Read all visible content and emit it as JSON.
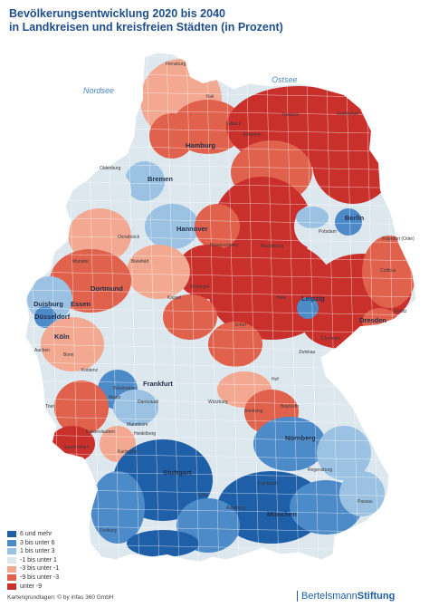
{
  "title": {
    "line1": "Bevölkerungsentwicklung 2020 bis 2040",
    "line2": "in Landkreisen und kreisfreien Städten (in Prozent)"
  },
  "seas": {
    "north": "Nordsee",
    "east": "Ostsee"
  },
  "legend": [
    {
      "label": "6  und mehr",
      "color": "#1f5fa8"
    },
    {
      "label": "3  bis unter   6",
      "color": "#4d8ac8"
    },
    {
      "label": "1  bis unter   3",
      "color": "#9cc2e3"
    },
    {
      "label": "-1  bis unter   1",
      "color": "#dde7ee"
    },
    {
      "label": "-3  bis unter  -1",
      "color": "#f3a892"
    },
    {
      "label": "-9  bis unter  -3",
      "color": "#e0614c"
    },
    {
      "label": "unter   -9",
      "color": "#c9302c"
    }
  ],
  "cities": [
    {
      "name": "Hamburg",
      "kind": "major"
    },
    {
      "name": "Bremen",
      "kind": "major"
    },
    {
      "name": "Hannover",
      "kind": "major"
    },
    {
      "name": "Berlin",
      "kind": "major"
    },
    {
      "name": "Dortmund",
      "kind": "major"
    },
    {
      "name": "Essen",
      "kind": "major"
    },
    {
      "name": "Duisburg",
      "kind": "major"
    },
    {
      "name": "Düsseldorf",
      "kind": "major"
    },
    {
      "name": "Köln",
      "kind": "major"
    },
    {
      "name": "Leipzig",
      "kind": "major"
    },
    {
      "name": "Dresden",
      "kind": "major"
    },
    {
      "name": "Frankfurt",
      "kind": "major"
    },
    {
      "name": "Stuttgart",
      "kind": "major"
    },
    {
      "name": "Nürnberg",
      "kind": "major"
    },
    {
      "name": "München",
      "kind": "major"
    },
    {
      "name": "Flensburg",
      "kind": "minor"
    },
    {
      "name": "Kiel",
      "kind": "minor"
    },
    {
      "name": "Lübeck",
      "kind": "minor"
    },
    {
      "name": "Rostock",
      "kind": "minor"
    },
    {
      "name": "Greifswald",
      "kind": "minor"
    },
    {
      "name": "Schwerin",
      "kind": "minor"
    },
    {
      "name": "Oldenburg",
      "kind": "minor"
    },
    {
      "name": "Osnabrück",
      "kind": "minor"
    },
    {
      "name": "Münster",
      "kind": "minor"
    },
    {
      "name": "Bielefeld",
      "kind": "minor"
    },
    {
      "name": "Braunschweig",
      "kind": "minor"
    },
    {
      "name": "Magdeburg",
      "kind": "minor"
    },
    {
      "name": "Potsdam",
      "kind": "minor"
    },
    {
      "name": "Halle",
      "kind": "minor"
    },
    {
      "name": "Erfurt",
      "kind": "minor"
    },
    {
      "name": "Kassel",
      "kind": "minor"
    },
    {
      "name": "Göttingen",
      "kind": "minor"
    },
    {
      "name": "Bonn",
      "kind": "minor"
    },
    {
      "name": "Aachen",
      "kind": "minor"
    },
    {
      "name": "Koblenz",
      "kind": "minor"
    },
    {
      "name": "Mainz",
      "kind": "minor"
    },
    {
      "name": "Wiesbaden",
      "kind": "minor"
    },
    {
      "name": "Darmstadt",
      "kind": "minor"
    },
    {
      "name": "Würzburg",
      "kind": "minor"
    },
    {
      "name": "Mannheim",
      "kind": "minor"
    },
    {
      "name": "Heidelberg",
      "kind": "minor"
    },
    {
      "name": "Saarbrücken",
      "kind": "minor"
    },
    {
      "name": "Karlsruhe",
      "kind": "minor"
    },
    {
      "name": "Freiburg",
      "kind": "minor"
    },
    {
      "name": "Ulm",
      "kind": "minor"
    },
    {
      "name": "Augsburg",
      "kind": "minor"
    },
    {
      "name": "Regensburg",
      "kind": "minor"
    },
    {
      "name": "Ingolstadt",
      "kind": "minor"
    },
    {
      "name": "Passau",
      "kind": "minor"
    },
    {
      "name": "Cottbus",
      "kind": "minor"
    },
    {
      "name": "Chemnitz",
      "kind": "minor"
    },
    {
      "name": "Zwickau",
      "kind": "minor"
    },
    {
      "name": "Hof",
      "kind": "minor"
    },
    {
      "name": "Bayreuth",
      "kind": "minor"
    },
    {
      "name": "Bamberg",
      "kind": "minor"
    },
    {
      "name": "Trier",
      "kind": "minor"
    },
    {
      "name": "Kaiserslautern",
      "kind": "minor"
    },
    {
      "name": "Frankfurt (Oder)",
      "kind": "minor"
    },
    {
      "name": "Görlitz",
      "kind": "minor"
    }
  ],
  "credit": "Kartengrundlagen: © by infas 360 GmbH",
  "brand": {
    "part1": "Bertelsmann",
    "part2": "Stiftung"
  }
}
